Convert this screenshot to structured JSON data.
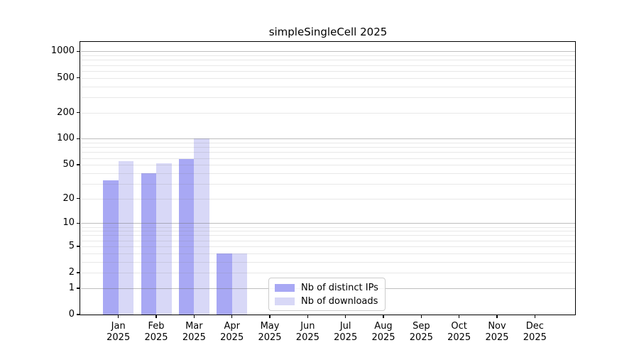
{
  "figure": {
    "title": "simpleSingleCell 2025"
  },
  "chart_data": {
    "type": "bar",
    "title": "simpleSingleCell 2025",
    "x_categories": [
      {
        "month": "Jan",
        "year": "2025"
      },
      {
        "month": "Feb",
        "year": "2025"
      },
      {
        "month": "Mar",
        "year": "2025"
      },
      {
        "month": "Apr",
        "year": "2025"
      },
      {
        "month": "May",
        "year": "2025"
      },
      {
        "month": "Jun",
        "year": "2025"
      },
      {
        "month": "Jul",
        "year": "2025"
      },
      {
        "month": "Aug",
        "year": "2025"
      },
      {
        "month": "Sep",
        "year": "2025"
      },
      {
        "month": "Oct",
        "year": "2025"
      },
      {
        "month": "Nov",
        "year": "2025"
      },
      {
        "month": "Dec",
        "year": "2025"
      }
    ],
    "series": [
      {
        "name": "Nb of distinct IPs",
        "color": "#a8a8f4",
        "values": [
          33,
          40,
          58,
          4,
          null,
          null,
          null,
          null,
          null,
          null,
          null,
          null
        ]
      },
      {
        "name": "Nb of downloads",
        "color": "#d8d8f7",
        "values": [
          55,
          52,
          100,
          4,
          null,
          null,
          null,
          null,
          null,
          null,
          null,
          null
        ]
      }
    ],
    "y_axis": {
      "scale": "log10(value+1)",
      "tick_values": [
        0,
        1,
        2,
        5,
        10,
        20,
        50,
        100,
        200,
        500,
        1000
      ],
      "top_value": 1270
    },
    "grid": {
      "major_values": [
        1,
        10,
        100,
        1000
      ],
      "minor_values": [
        2,
        3,
        4,
        5,
        6,
        7,
        8,
        9,
        20,
        30,
        40,
        50,
        60,
        70,
        80,
        90,
        200,
        300,
        400,
        500,
        600,
        700,
        800,
        900
      ]
    },
    "legend": {
      "location": "inside-bottom-center"
    }
  }
}
